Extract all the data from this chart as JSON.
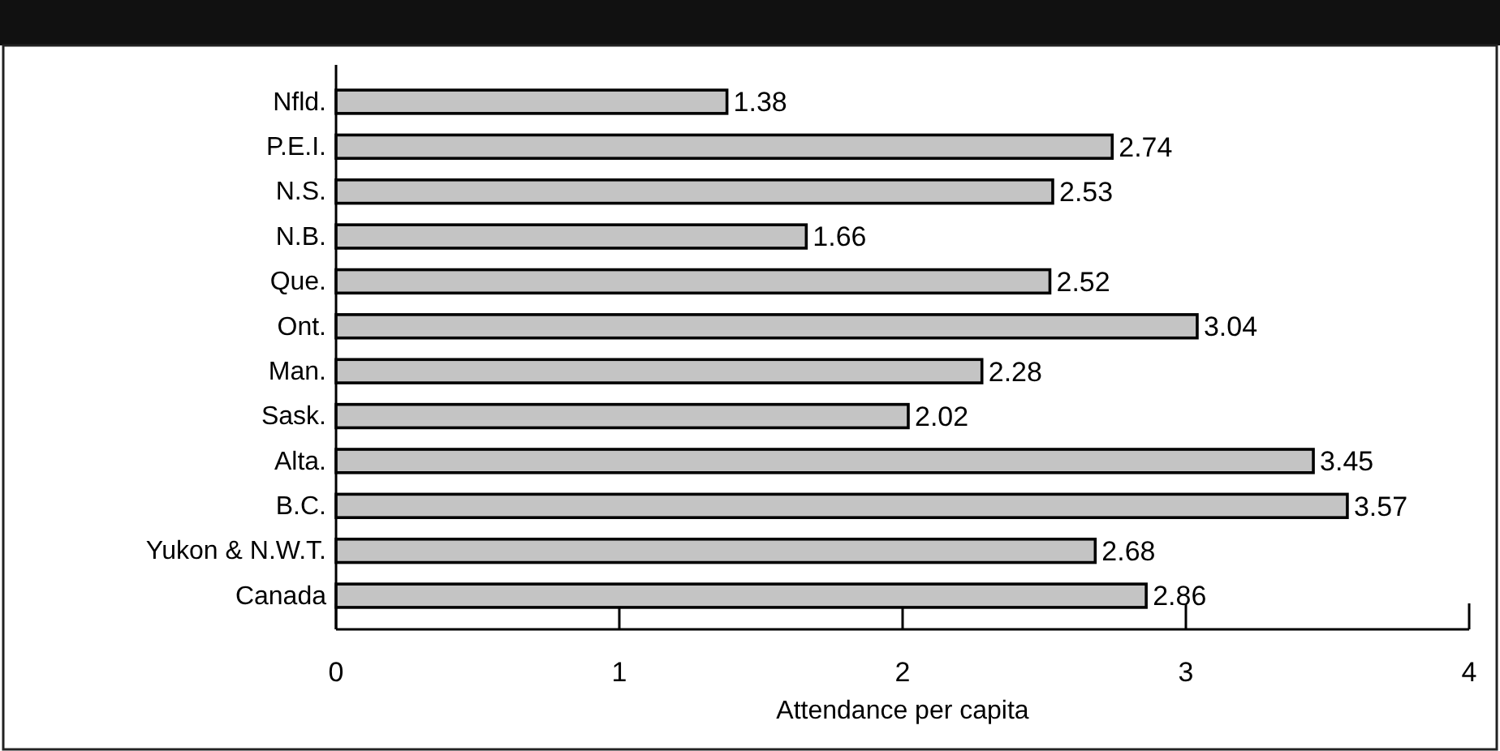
{
  "chart_data": {
    "type": "bar",
    "orientation": "horizontal",
    "xlabel": "Attendance per capita",
    "categories": [
      "Nfld.",
      "P.E.I.",
      "N.S.",
      "N.B.",
      "Que.",
      "Ont.",
      "Man.",
      "Sask.",
      "Alta.",
      "B.C.",
      "Yukon & N.W.T.",
      "Canada"
    ],
    "values": [
      1.38,
      2.74,
      2.53,
      1.66,
      2.52,
      3.04,
      2.28,
      2.02,
      3.45,
      3.57,
      2.68,
      2.86
    ],
    "color": "#c4c4c4",
    "xlim": [
      0,
      4
    ],
    "xticks": [
      0,
      1,
      2,
      3,
      4
    ],
    "data_labels": true,
    "grid": false
  }
}
